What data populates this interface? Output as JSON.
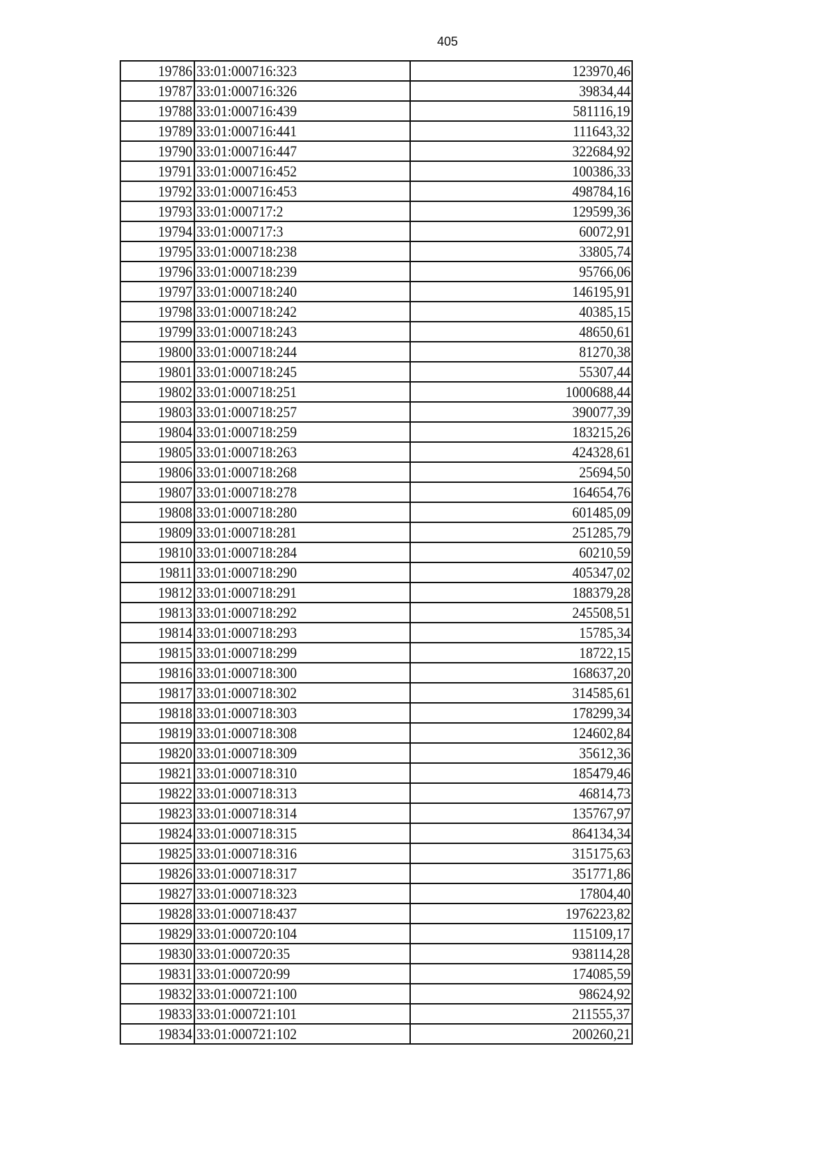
{
  "page_number": "405",
  "rows": [
    [
      "19786",
      "33:01:000716:323",
      "123970,46"
    ],
    [
      "19787",
      "33:01:000716:326",
      "39834,44"
    ],
    [
      "19788",
      "33:01:000716:439",
      "581116,19"
    ],
    [
      "19789",
      "33:01:000716:441",
      "111643,32"
    ],
    [
      "19790",
      "33:01:000716:447",
      "322684,92"
    ],
    [
      "19791",
      "33:01:000716:452",
      "100386,33"
    ],
    [
      "19792",
      "33:01:000716:453",
      "498784,16"
    ],
    [
      "19793",
      "33:01:000717:2",
      "129599,36"
    ],
    [
      "19794",
      "33:01:000717:3",
      "60072,91"
    ],
    [
      "19795",
      "33:01:000718:238",
      "33805,74"
    ],
    [
      "19796",
      "33:01:000718:239",
      "95766,06"
    ],
    [
      "19797",
      "33:01:000718:240",
      "146195,91"
    ],
    [
      "19798",
      "33:01:000718:242",
      "40385,15"
    ],
    [
      "19799",
      "33:01:000718:243",
      "48650,61"
    ],
    [
      "19800",
      "33:01:000718:244",
      "81270,38"
    ],
    [
      "19801",
      "33:01:000718:245",
      "55307,44"
    ],
    [
      "19802",
      "33:01:000718:251",
      "1000688,44"
    ],
    [
      "19803",
      "33:01:000718:257",
      "390077,39"
    ],
    [
      "19804",
      "33:01:000718:259",
      "183215,26"
    ],
    [
      "19805",
      "33:01:000718:263",
      "424328,61"
    ],
    [
      "19806",
      "33:01:000718:268",
      "25694,50"
    ],
    [
      "19807",
      "33:01:000718:278",
      "164654,76"
    ],
    [
      "19808",
      "33:01:000718:280",
      "601485,09"
    ],
    [
      "19809",
      "33:01:000718:281",
      "251285,79"
    ],
    [
      "19810",
      "33:01:000718:284",
      "60210,59"
    ],
    [
      "19811",
      "33:01:000718:290",
      "405347,02"
    ],
    [
      "19812",
      "33:01:000718:291",
      "188379,28"
    ],
    [
      "19813",
      "33:01:000718:292",
      "245508,51"
    ],
    [
      "19814",
      "33:01:000718:293",
      "15785,34"
    ],
    [
      "19815",
      "33:01:000718:299",
      "18722,15"
    ],
    [
      "19816",
      "33:01:000718:300",
      "168637,20"
    ],
    [
      "19817",
      "33:01:000718:302",
      "314585,61"
    ],
    [
      "19818",
      "33:01:000718:303",
      "178299,34"
    ],
    [
      "19819",
      "33:01:000718:308",
      "124602,84"
    ],
    [
      "19820",
      "33:01:000718:309",
      "35612,36"
    ],
    [
      "19821",
      "33:01:000718:310",
      "185479,46"
    ],
    [
      "19822",
      "33:01:000718:313",
      "46814,73"
    ],
    [
      "19823",
      "33:01:000718:314",
      "135767,97"
    ],
    [
      "19824",
      "33:01:000718:315",
      "864134,34"
    ],
    [
      "19825",
      "33:01:000718:316",
      "315175,63"
    ],
    [
      "19826",
      "33:01:000718:317",
      "351771,86"
    ],
    [
      "19827",
      "33:01:000718:323",
      "17804,40"
    ],
    [
      "19828",
      "33:01:000718:437",
      "1976223,82"
    ],
    [
      "19829",
      "33:01:000720:104",
      "115109,17"
    ],
    [
      "19830",
      "33:01:000720:35",
      "938114,28"
    ],
    [
      "19831",
      "33:01:000720:99",
      "174085,59"
    ],
    [
      "19832",
      "33:01:000721:100",
      "98624,92"
    ],
    [
      "19833",
      "33:01:000721:101",
      "211555,37"
    ],
    [
      "19834",
      "33:01:000721:102",
      "200260,21"
    ]
  ]
}
